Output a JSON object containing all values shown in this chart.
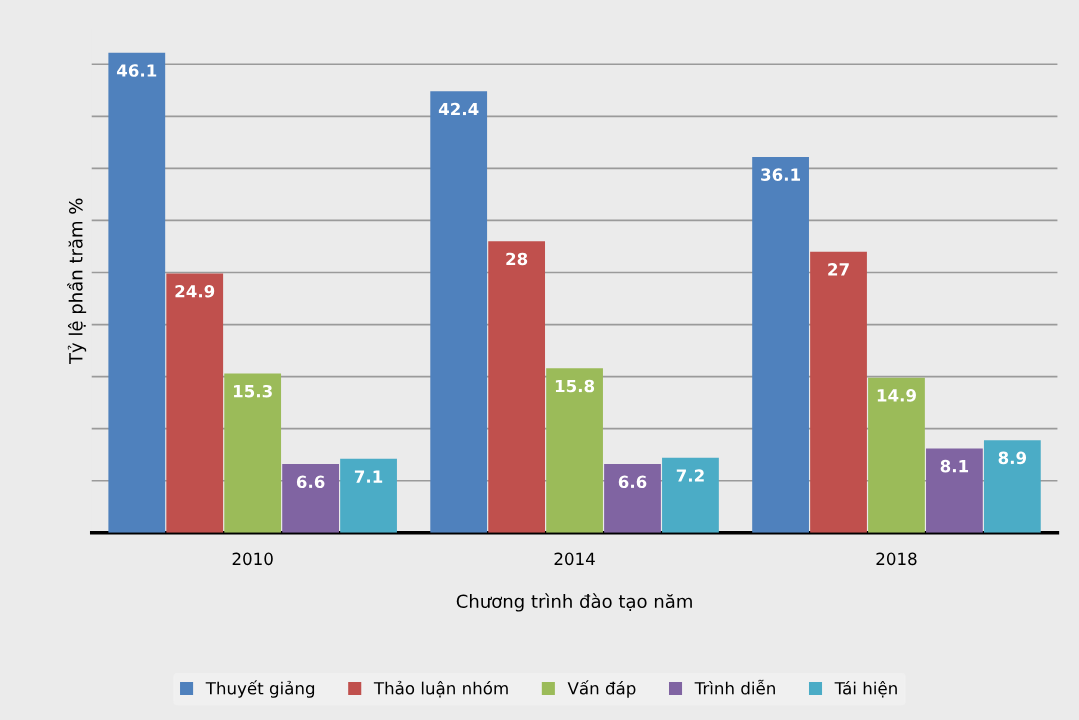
{
  "chart_data": {
    "type": "bar",
    "xlabel": "Chương trình đào tạo năm",
    "ylabel": "Tỷ lệ phần trăm %",
    "categories": [
      "2010",
      "2014",
      "2018"
    ],
    "series": [
      {
        "name": "Thuyết giảng",
        "color": "#4f81bd",
        "values": [
          46.1,
          42.4,
          36.1
        ]
      },
      {
        "name": "Thảo luận nhóm",
        "color": "#c0504d",
        "values": [
          24.9,
          28,
          27
        ]
      },
      {
        "name": "Vấn đáp",
        "color": "#9bbb59",
        "values": [
          15.3,
          15.8,
          14.9
        ]
      },
      {
        "name": "Trình diễn",
        "color": "#8064a2",
        "values": [
          6.6,
          6.6,
          8.1
        ]
      },
      {
        "name": "Tái hiện",
        "color": "#4bacc6",
        "values": [
          7.1,
          7.2,
          8.9
        ]
      }
    ],
    "yticks": [
      {
        "value": 5,
        "label": null
      },
      {
        "value": 10,
        "label": null
      },
      {
        "value": 15,
        "label": null
      },
      {
        "value": 20,
        "label": null
      },
      {
        "value": 25,
        "label": null
      },
      {
        "value": 30,
        "label": null
      },
      {
        "value": 35,
        "label": null
      },
      {
        "value": 40,
        "label": null
      },
      {
        "value": 45,
        "label": null
      }
    ],
    "tick_labels": "x",
    "grid": "y",
    "legend": "bottom",
    "data_labels": true
  }
}
